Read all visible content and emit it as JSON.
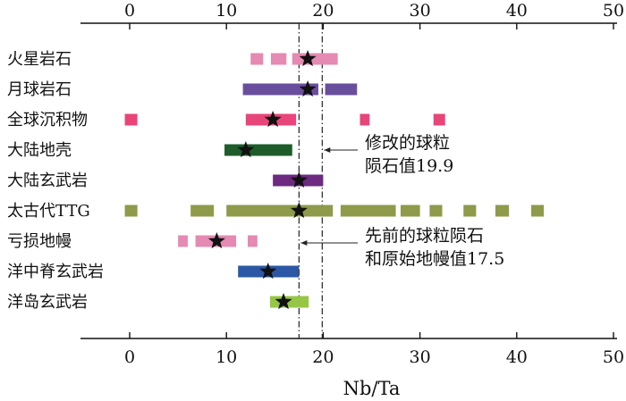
{
  "chart_data": {
    "type": "range-bar",
    "xlabel": "Nb/Ta",
    "xlim": [
      0,
      50
    ],
    "xticks": [
      0,
      10,
      20,
      30,
      40,
      50
    ],
    "grid": false,
    "colors": {
      "mars": "#e58ab2",
      "moon": "#6a4e9e",
      "sediment": "#e8457a",
      "crust": "#1e5c2a",
      "cfb": "#6c2a80",
      "ttg": "#8f9a4a",
      "depleted": "#e58ab2",
      "morb": "#2c57a4",
      "oib": "#96c646"
    },
    "rows": [
      {
        "label": "火星岩石",
        "color_key": "mars",
        "segments": [
          [
            12.5,
            13.8
          ],
          [
            14.6,
            16.2
          ],
          [
            16.8,
            21.5
          ]
        ],
        "star": 18.4
      },
      {
        "label": "月球岩石",
        "color_key": "moon",
        "segments": [
          [
            11.7,
            19.5
          ],
          [
            20.2,
            23.5
          ]
        ],
        "star": 18.4
      },
      {
        "label": "全球沉积物",
        "color_key": "sediment",
        "segments": [
          [
            -0.5,
            0.8
          ],
          [
            12.0,
            17.2
          ],
          [
            23.8,
            24.8
          ],
          [
            31.4,
            32.6
          ]
        ],
        "star": 14.8
      },
      {
        "label": "大陆地壳",
        "color_key": "crust",
        "segments": [
          [
            9.8,
            16.8
          ]
        ],
        "star": 12.0
      },
      {
        "label": "大陆玄武岩",
        "color_key": "cfb",
        "segments": [
          [
            14.8,
            20.0
          ]
        ],
        "star": 17.5
      },
      {
        "label": "太古代TTG",
        "color_key": "ttg",
        "segments": [
          [
            -0.5,
            0.8
          ],
          [
            6.3,
            8.7
          ],
          [
            10.0,
            21.0
          ],
          [
            21.8,
            27.5
          ],
          [
            28.0,
            30.0
          ],
          [
            31.0,
            32.3
          ],
          [
            34.5,
            35.8
          ],
          [
            37.8,
            39.2
          ],
          [
            41.5,
            42.8
          ]
        ],
        "star": 17.5
      },
      {
        "label": "亏损地幔",
        "color_key": "depleted",
        "segments": [
          [
            5.0,
            6.0
          ],
          [
            6.8,
            11.0
          ],
          [
            12.2,
            13.2
          ]
        ],
        "star": 9.0
      },
      {
        "label": "洋中脊玄武岩",
        "color_key": "morb",
        "segments": [
          [
            11.2,
            17.5
          ]
        ],
        "star": 14.3
      },
      {
        "label": "洋岛玄武岩",
        "color_key": "oib",
        "segments": [
          [
            14.5,
            18.5
          ]
        ],
        "star": 15.9
      }
    ],
    "reference_lines": [
      {
        "x": 17.5,
        "style": "dashdot"
      },
      {
        "x": 19.9,
        "style": "dashdot"
      }
    ],
    "annotations": [
      {
        "lines": [
          "修改的球粒",
          "陨石值19.9"
        ],
        "points_to": 19.9
      },
      {
        "lines": [
          "先前的球粒陨石",
          "和原始地幔值17.5"
        ],
        "points_to": 17.5
      }
    ]
  }
}
